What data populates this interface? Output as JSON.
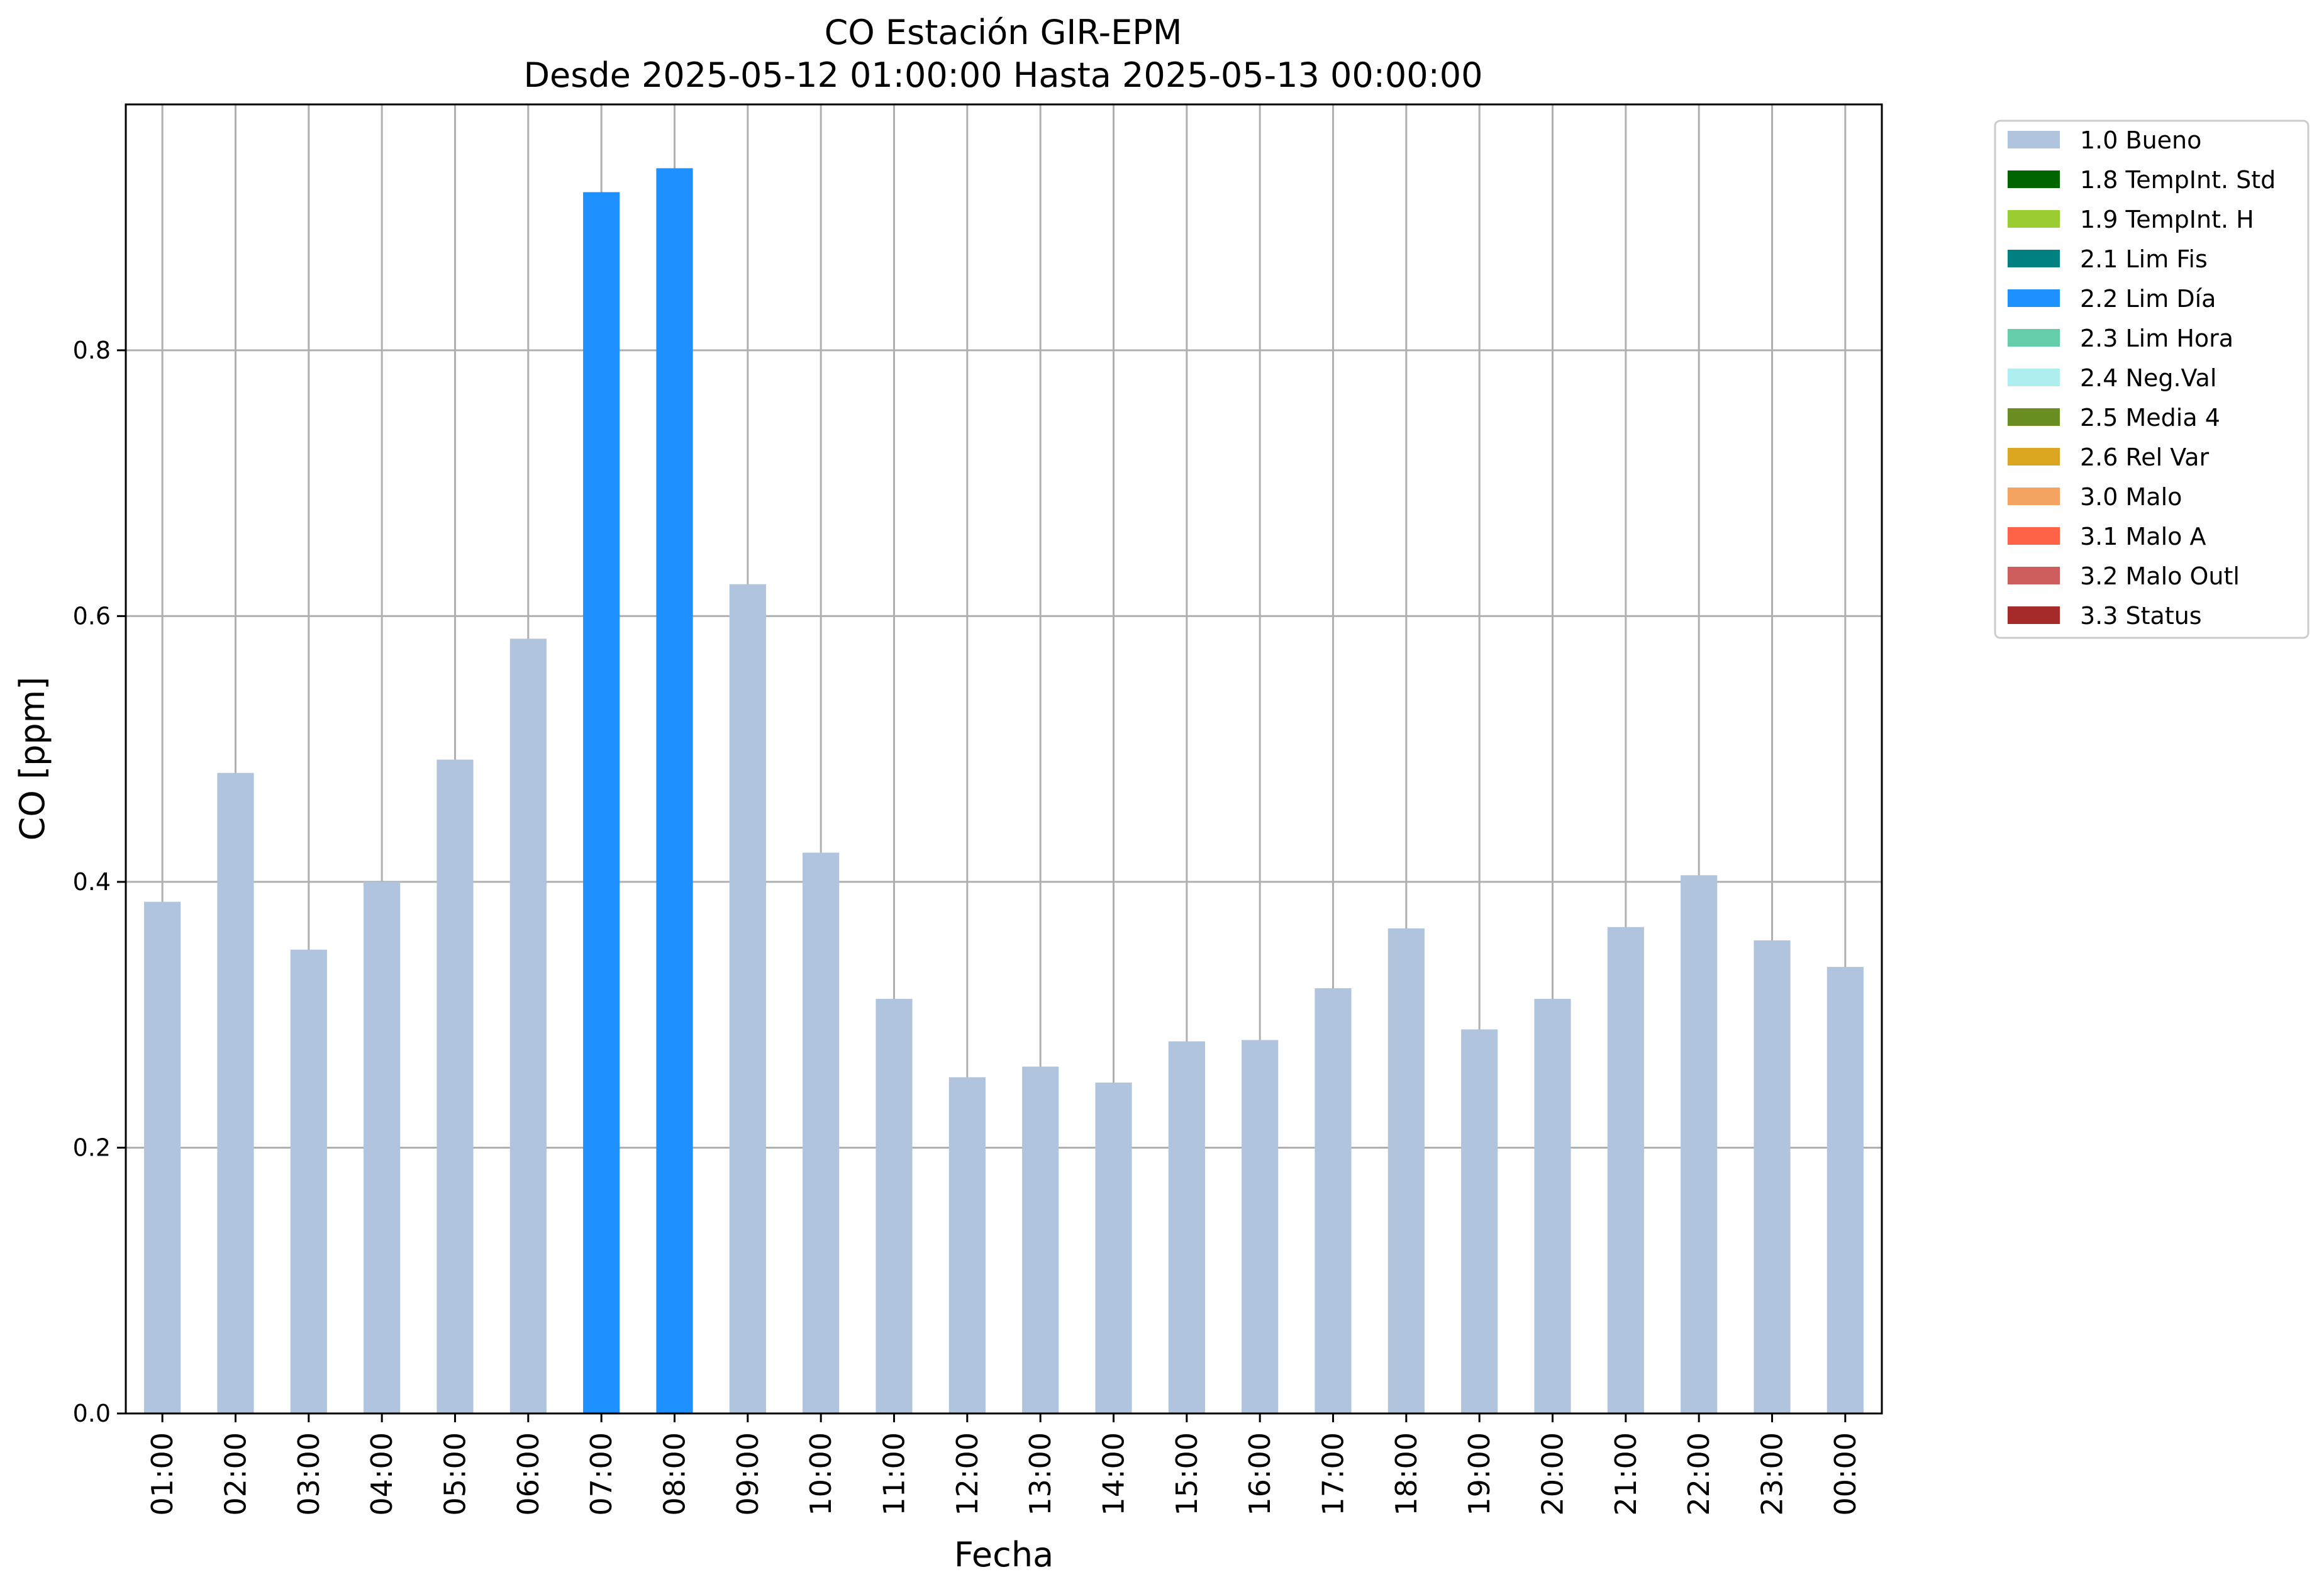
{
  "chart_data": {
    "type": "bar",
    "title": "CO Estación GIR-EPM",
    "subtitle": "Desde 2025-05-12 01:00:00 Hasta 2025-05-13 00:00:00",
    "xlabel": "Fecha",
    "ylabel": "CO [ppm]",
    "ylim": [
      0,
      0.985
    ],
    "yticks": [
      "0.0",
      "0.2",
      "0.4",
      "0.6",
      "0.8"
    ],
    "grid": true,
    "legend_position": "outside-top-right",
    "categories": [
      "01:00",
      "02:00",
      "03:00",
      "04:00",
      "05:00",
      "06:00",
      "07:00",
      "08:00",
      "09:00",
      "10:00",
      "11:00",
      "12:00",
      "13:00",
      "14:00",
      "15:00",
      "16:00",
      "17:00",
      "18:00",
      "19:00",
      "20:00",
      "21:00",
      "22:00",
      "23:00",
      "00:00"
    ],
    "values": [
      0.385,
      0.482,
      0.349,
      0.4,
      0.492,
      0.583,
      0.919,
      0.937,
      0.624,
      0.422,
      0.312,
      0.253,
      0.261,
      0.249,
      0.28,
      0.281,
      0.32,
      0.365,
      0.289,
      0.312,
      0.366,
      0.405,
      0.356,
      0.336
    ],
    "flags": [
      "1.0 Bueno",
      "1.0 Bueno",
      "1.0 Bueno",
      "1.0 Bueno",
      "1.0 Bueno",
      "1.0 Bueno",
      "2.2 Lim Día",
      "2.2 Lim Día",
      "1.0 Bueno",
      "1.0 Bueno",
      "1.0 Bueno",
      "1.0 Bueno",
      "1.0 Bueno",
      "1.0 Bueno",
      "1.0 Bueno",
      "1.0 Bueno",
      "1.0 Bueno",
      "1.0 Bueno",
      "1.0 Bueno",
      "1.0 Bueno",
      "1.0 Bueno",
      "1.0 Bueno",
      "1.0 Bueno",
      "1.0 Bueno"
    ],
    "legend": [
      {
        "label": "1.0 Bueno",
        "color": "#b0c4de"
      },
      {
        "label": "1.8 TempInt. Std",
        "color": "#006400"
      },
      {
        "label": "1.9 TempInt. H",
        "color": "#9acd32"
      },
      {
        "label": "2.1 Lim Fis",
        "color": "#008080"
      },
      {
        "label": "2.2 Lim Día",
        "color": "#1e90ff"
      },
      {
        "label": "2.3 Lim Hora",
        "color": "#66cdaa"
      },
      {
        "label": "2.4 Neg.Val",
        "color": "#afeeee"
      },
      {
        "label": "2.5 Media 4",
        "color": "#6b8e23"
      },
      {
        "label": "2.6 Rel Var",
        "color": "#daa520"
      },
      {
        "label": "3.0 Malo",
        "color": "#f4a460"
      },
      {
        "label": "3.1 Malo A",
        "color": "#ff6347"
      },
      {
        "label": "3.2 Malo Outl",
        "color": "#cd5c5c"
      },
      {
        "label": "3.3 Status",
        "color": "#a52a2a"
      }
    ]
  }
}
